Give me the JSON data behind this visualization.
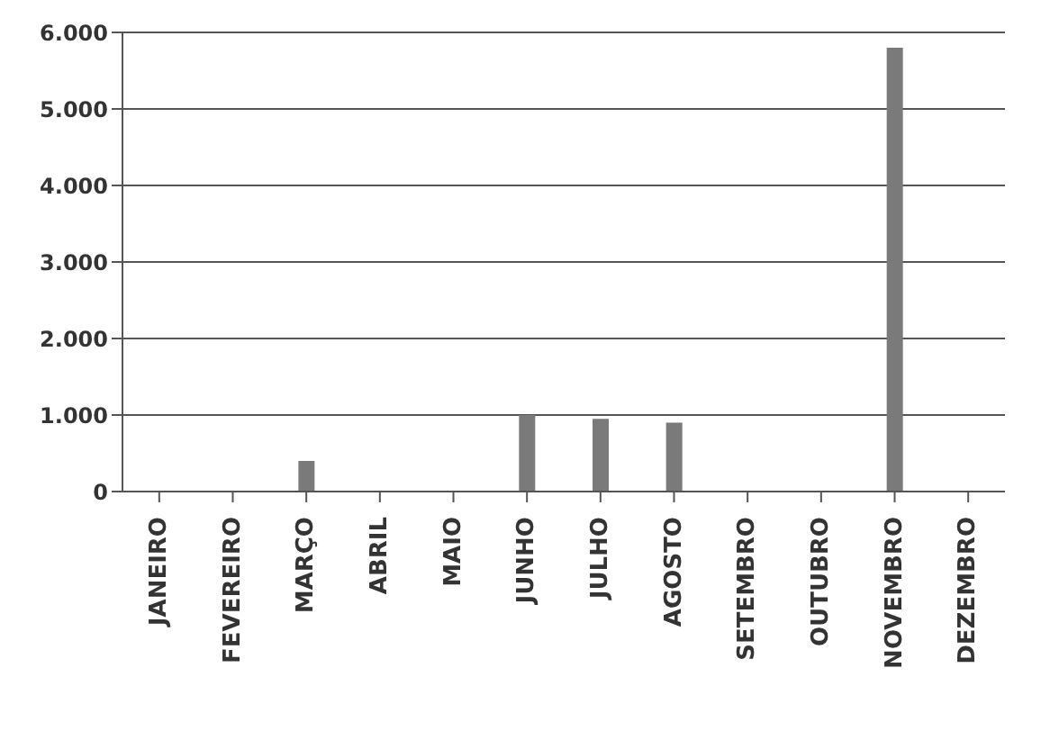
{
  "chart_data": {
    "type": "bar",
    "categories": [
      "JANEIRO",
      "FEVEREIRO",
      "MARÇO",
      "ABRIL",
      "MAIO",
      "JUNHO",
      "JULHO",
      "AGOSTO",
      "SETEMBRO",
      "OUTUBRO",
      "NOVEMBRO",
      "DEZEMBRO"
    ],
    "values": [
      0,
      0,
      400,
      0,
      0,
      1000,
      950,
      900,
      0,
      0,
      5800,
      0
    ],
    "color": "#7a7a7a",
    "ylim": [
      0,
      6000
    ],
    "yticks": [
      {
        "value": 0,
        "label": "0"
      },
      {
        "value": 1000,
        "label": "1.000"
      },
      {
        "value": 2000,
        "label": "2.000"
      },
      {
        "value": 3000,
        "label": "3.000"
      },
      {
        "value": 4000,
        "label": "4.000"
      },
      {
        "value": 5000,
        "label": "5.000"
      },
      {
        "value": 6000,
        "label": "6.000"
      }
    ],
    "grid": "y"
  }
}
